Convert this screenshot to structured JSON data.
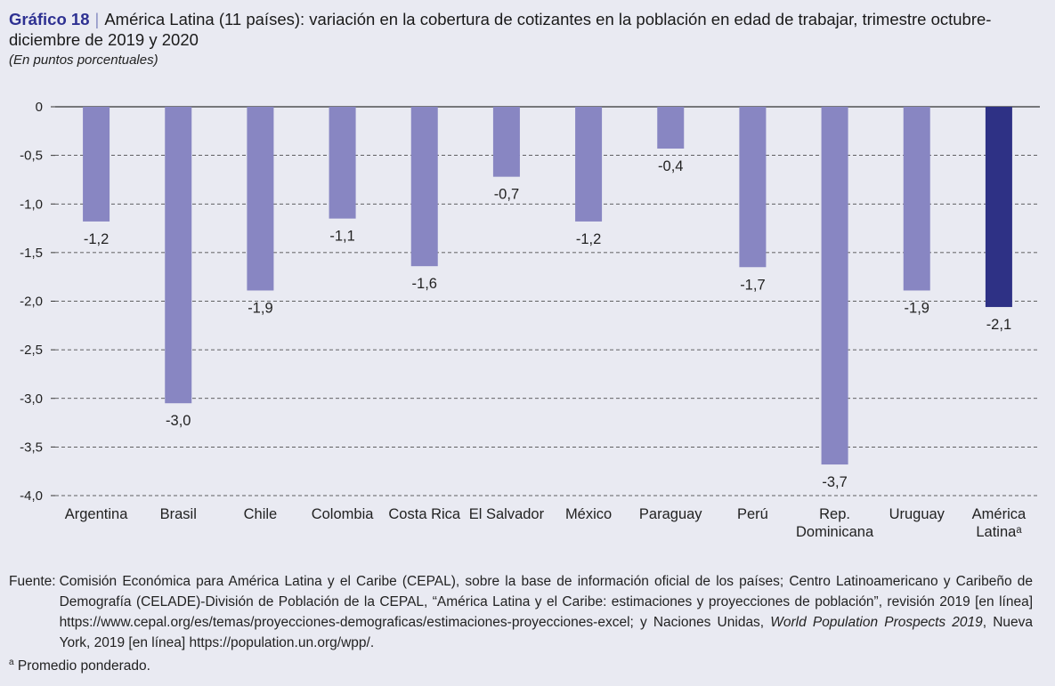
{
  "header": {
    "figure_number": "Gráfico 18",
    "separator": "|",
    "title": "América Latina (11 países): variación en la cobertura de cotizantes en la población en edad de trabajar, trimestre octubre-diciembre de 2019 y 2020",
    "subtitle": "(En puntos porcentuales)"
  },
  "chart_data": {
    "type": "bar",
    "categories": [
      "Argentina",
      "Brasil",
      "Chile",
      "Colombia",
      "Costa Rica",
      "El Salvador",
      "México",
      "Paraguay",
      "Perú",
      "Rep. Dominicana",
      "Uruguay",
      "América Latinaᵃ"
    ],
    "category_lines": [
      [
        "Argentina"
      ],
      [
        "Brasil"
      ],
      [
        "Chile"
      ],
      [
        "Colombia"
      ],
      [
        "Costa Rica"
      ],
      [
        "El Salvador"
      ],
      [
        "México"
      ],
      [
        "Paraguay"
      ],
      [
        "Perú"
      ],
      [
        "Rep.",
        "Dominicana"
      ],
      [
        "Uruguay"
      ],
      [
        "América",
        "Latinaᵃ"
      ]
    ],
    "values": [
      -1.18,
      -3.05,
      -1.89,
      -1.15,
      -1.64,
      -0.72,
      -1.18,
      -0.43,
      -1.65,
      -3.68,
      -1.89,
      -2.06
    ],
    "data_labels": [
      "-1,2",
      "-3,0",
      "-1,9",
      "-1,1",
      "-1,6",
      "-0,7",
      "-1,2",
      "-0,4",
      "-1,7",
      "-3,7",
      "-1,9",
      "-2,1"
    ],
    "y_ticks": [
      0,
      -0.5,
      -1.0,
      -1.5,
      -2.0,
      -2.5,
      -3.0,
      -3.5,
      -4.0
    ],
    "y_tick_labels": [
      "0",
      "-0,5",
      "-1,0",
      "-1,5",
      "-2,0",
      "-2,5",
      "-3,0",
      "-3,5",
      "-4,0"
    ],
    "ylim": [
      -4.0,
      0
    ],
    "xlabel": "",
    "ylabel": "",
    "grid": true,
    "colors": {
      "bar": "#8886c2",
      "highlight": "#2e3185",
      "highlight_index": 11
    }
  },
  "source": {
    "label": "Fuente:",
    "text_before_italic": "Comisión Económica para América Latina y el Caribe (CEPAL), sobre la base de información oficial de los países; Centro Latinoamericano y Caribeño de Demografía (CELADE)-División de Población de la CEPAL, “América Latina y el Caribe: estimaciones y proyecciones de población”, revisión 2019 [en línea] https://www.cepal.org/es/temas/proyecciones-demograficas/estimaciones-proyecciones-excel; y Naciones Unidas, ",
    "italic": "World Population Prospects 2019",
    "text_after_italic": ", Nueva York, 2019 [en línea] https://population.un.org/wpp/."
  },
  "note": {
    "marker": "a",
    "text": "Promedio ponderado."
  }
}
